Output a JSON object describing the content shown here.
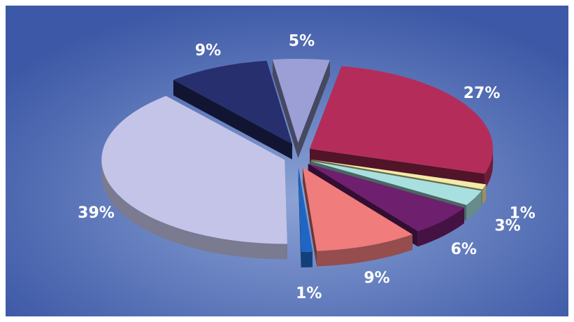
{
  "chart_data": {
    "type": "pie",
    "style": "3d-exploded",
    "title": "",
    "legend": "none",
    "background": {
      "inner": "#8ba3d6",
      "outer": "#3d58a6"
    },
    "slices": [
      {
        "label": "5%",
        "value": 5,
        "color": "#9c9fd6"
      },
      {
        "label": "27%",
        "value": 27,
        "color": "#b42d5a"
      },
      {
        "label": "1%",
        "value": 1,
        "color": "#f2eaa8"
      },
      {
        "label": "3%",
        "value": 3,
        "color": "#a8e0e0"
      },
      {
        "label": "6%",
        "value": 6,
        "color": "#6e1f6e"
      },
      {
        "label": "9%",
        "value": 9,
        "color": "#f07c7c"
      },
      {
        "label": "1%",
        "value": 1,
        "color": "#1f66c4"
      },
      {
        "label": "39%",
        "value": 39,
        "color": "#c4c4e8"
      },
      {
        "label": "9%",
        "value": 9,
        "color": "#282f6e"
      }
    ]
  }
}
